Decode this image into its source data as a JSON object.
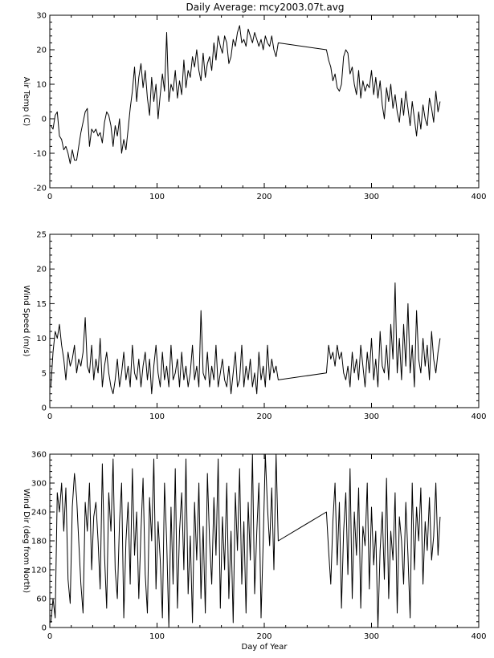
{
  "title": "Daily Average: mcy2003.07t.avg",
  "colors": {
    "line": "#000000",
    "axis": "#000000",
    "background": "#ffffff"
  },
  "chart_data": [
    {
      "id": "air-temp",
      "type": "line",
      "title": "Daily Average: mcy2003.07t.avg",
      "xlabel": "",
      "ylabel": "Air Temp (C)",
      "xlim": [
        0,
        400
      ],
      "ylim": [
        -20,
        30
      ],
      "xticks": [
        "0",
        "100",
        "200",
        "300",
        "400"
      ],
      "yticks": [
        "-20",
        "-10",
        "0",
        "10",
        "20",
        "30"
      ],
      "grid": false,
      "series": [
        {
          "x": [
            1,
            3,
            5,
            7,
            9,
            11,
            13,
            15,
            17,
            19,
            21,
            23,
            25,
            27,
            29,
            31,
            33,
            35,
            37,
            39,
            41,
            43,
            45,
            47,
            49,
            51,
            53,
            55,
            57,
            59,
            61,
            63,
            65,
            67,
            69,
            71,
            73,
            75,
            77,
            79,
            81,
            83,
            85,
            87,
            89,
            91,
            93,
            95,
            97,
            99,
            101,
            103,
            105,
            107,
            109,
            111,
            113,
            115,
            117,
            119,
            121,
            123,
            125,
            127,
            129,
            131,
            133,
            135,
            137,
            139,
            141,
            143,
            145,
            147,
            149,
            151,
            153,
            155,
            157,
            159,
            161,
            163,
            165,
            167,
            169,
            171,
            173,
            175,
            177,
            179,
            181,
            183,
            185,
            187,
            189,
            191,
            193,
            195,
            197,
            199,
            201,
            203,
            205,
            207,
            209,
            211,
            213,
            258,
            260,
            262,
            264,
            266,
            268,
            270,
            272,
            274,
            276,
            278,
            280,
            282,
            284,
            286,
            288,
            290,
            292,
            294,
            296,
            298,
            300,
            302,
            304,
            306,
            308,
            310,
            312,
            314,
            316,
            318,
            320,
            322,
            324,
            326,
            328,
            330,
            332,
            334,
            336,
            338,
            340,
            342,
            344,
            346,
            348,
            350,
            352,
            354,
            356,
            358,
            360,
            362,
            364
          ],
          "y": [
            -2,
            -3,
            1,
            2,
            -5,
            -6,
            -9,
            -8,
            -10,
            -13,
            -9,
            -12,
            -12,
            -8,
            -4,
            -1,
            2,
            3,
            -8,
            -3,
            -4,
            -3,
            -5,
            -4,
            -7,
            -1,
            2,
            1,
            -2,
            -8,
            -2,
            -5,
            0,
            -10,
            -6,
            -9,
            -3,
            3,
            8,
            15,
            5,
            12,
            16,
            9,
            14,
            6,
            1,
            12,
            5,
            10,
            0,
            7,
            13,
            8,
            25,
            5,
            10,
            8,
            14,
            6,
            11,
            7,
            17,
            9,
            14,
            12,
            18,
            15,
            20,
            14,
            11,
            19,
            12,
            16,
            18,
            14,
            22,
            17,
            24,
            21,
            19,
            24,
            22,
            16,
            18,
            23,
            21,
            25,
            27,
            22,
            23,
            21,
            26,
            24,
            22,
            25,
            23,
            21,
            23,
            20,
            24,
            22,
            21,
            24,
            20,
            18,
            22,
            20,
            17,
            15,
            11,
            13,
            9,
            8,
            10,
            18,
            20,
            19,
            13,
            15,
            10,
            7,
            14,
            6,
            11,
            8,
            10,
            9,
            14,
            7,
            12,
            6,
            11,
            4,
            0,
            9,
            5,
            10,
            3,
            7,
            2,
            -1,
            6,
            1,
            8,
            3,
            -2,
            5,
            0,
            -5,
            2,
            -3,
            4,
            0,
            -2,
            6,
            3,
            -1,
            8,
            2,
            5
          ]
        }
      ]
    },
    {
      "id": "wind-speed",
      "type": "line",
      "title": "",
      "xlabel": "",
      "ylabel": "Wind Speed (m/s)",
      "xlim": [
        0,
        400
      ],
      "ylim": [
        0,
        25
      ],
      "xticks": [
        "0",
        "100",
        "200",
        "300",
        "400"
      ],
      "yticks": [
        "0",
        "5",
        "10",
        "15",
        "20",
        "25"
      ],
      "grid": false,
      "series": [
        {
          "x": [
            1,
            3,
            5,
            7,
            9,
            11,
            13,
            15,
            17,
            19,
            21,
            23,
            25,
            27,
            29,
            31,
            33,
            35,
            37,
            39,
            41,
            43,
            45,
            47,
            49,
            51,
            53,
            55,
            57,
            59,
            61,
            63,
            65,
            67,
            69,
            71,
            73,
            75,
            77,
            79,
            81,
            83,
            85,
            87,
            89,
            91,
            93,
            95,
            97,
            99,
            101,
            103,
            105,
            107,
            109,
            111,
            113,
            115,
            117,
            119,
            121,
            123,
            125,
            127,
            129,
            131,
            133,
            135,
            137,
            139,
            141,
            143,
            145,
            147,
            149,
            151,
            153,
            155,
            157,
            159,
            161,
            163,
            165,
            167,
            169,
            171,
            173,
            175,
            177,
            179,
            181,
            183,
            185,
            187,
            189,
            191,
            193,
            195,
            197,
            199,
            201,
            203,
            205,
            207,
            209,
            211,
            213,
            258,
            260,
            262,
            264,
            266,
            268,
            270,
            272,
            274,
            276,
            278,
            280,
            282,
            284,
            286,
            288,
            290,
            292,
            294,
            296,
            298,
            300,
            302,
            304,
            306,
            308,
            310,
            312,
            314,
            316,
            318,
            320,
            322,
            324,
            326,
            328,
            330,
            332,
            334,
            336,
            338,
            340,
            342,
            344,
            346,
            348,
            350,
            352,
            354,
            356,
            358,
            360,
            362,
            364
          ],
          "y": [
            3,
            8,
            11,
            10,
            12,
            9,
            7,
            4,
            8,
            6,
            7,
            9,
            5,
            7,
            6,
            8,
            13,
            6,
            5,
            9,
            4,
            7,
            5,
            10,
            3,
            6,
            8,
            5,
            3,
            2,
            4,
            7,
            3,
            5,
            8,
            4,
            6,
            3,
            9,
            5,
            4,
            7,
            3,
            6,
            8,
            4,
            7,
            2,
            6,
            9,
            5,
            3,
            8,
            4,
            6,
            3,
            9,
            4,
            5,
            7,
            3,
            8,
            4,
            6,
            3,
            5,
            9,
            4,
            6,
            3,
            14,
            5,
            4,
            8,
            3,
            6,
            4,
            9,
            3,
            5,
            7,
            4,
            3,
            6,
            2,
            5,
            8,
            3,
            4,
            9,
            3,
            6,
            4,
            7,
            3,
            5,
            2,
            8,
            4,
            6,
            3,
            9,
            4,
            7,
            5,
            6,
            4,
            5,
            9,
            7,
            8,
            6,
            9,
            7,
            8,
            5,
            4,
            6,
            3,
            8,
            5,
            7,
            4,
            9,
            6,
            3,
            8,
            5,
            10,
            4,
            7,
            3,
            11,
            6,
            5,
            9,
            4,
            12,
            7,
            18,
            5,
            10,
            4,
            12,
            6,
            15,
            5,
            9,
            3,
            14,
            7,
            5,
            10,
            6,
            9,
            4,
            11,
            7,
            5,
            8,
            10
          ]
        }
      ]
    },
    {
      "id": "wind-dir",
      "type": "line",
      "title": "",
      "xlabel": "Day of Year",
      "ylabel": "Wind Dir (deg from North)",
      "xlim": [
        0,
        400
      ],
      "ylim": [
        0,
        360
      ],
      "xticks": [
        "0",
        "100",
        "200",
        "300",
        "400"
      ],
      "yticks": [
        "0",
        "60",
        "120",
        "180",
        "240",
        "300",
        "360"
      ],
      "grid": false,
      "series": [
        {
          "x": [
            1,
            3,
            5,
            7,
            9,
            11,
            13,
            15,
            17,
            19,
            21,
            23,
            25,
            27,
            29,
            31,
            33,
            35,
            37,
            39,
            41,
            43,
            45,
            47,
            49,
            51,
            53,
            55,
            57,
            59,
            61,
            63,
            65,
            67,
            69,
            71,
            73,
            75,
            77,
            79,
            81,
            83,
            85,
            87,
            89,
            91,
            93,
            95,
            97,
            99,
            101,
            103,
            105,
            107,
            109,
            111,
            113,
            115,
            117,
            119,
            121,
            123,
            125,
            127,
            129,
            131,
            133,
            135,
            137,
            139,
            141,
            143,
            145,
            147,
            149,
            151,
            153,
            155,
            157,
            159,
            161,
            163,
            165,
            167,
            169,
            171,
            173,
            175,
            177,
            179,
            181,
            183,
            185,
            187,
            189,
            191,
            193,
            195,
            197,
            199,
            201,
            203,
            205,
            207,
            209,
            211,
            213,
            258,
            260,
            262,
            264,
            266,
            268,
            270,
            272,
            274,
            276,
            278,
            280,
            282,
            284,
            286,
            288,
            290,
            292,
            294,
            296,
            298,
            300,
            302,
            304,
            306,
            308,
            310,
            312,
            314,
            316,
            318,
            320,
            322,
            324,
            326,
            328,
            330,
            332,
            334,
            336,
            338,
            340,
            342,
            344,
            346,
            348,
            350,
            352,
            354,
            356,
            358,
            360,
            362,
            364
          ],
          "y": [
            10,
            60,
            20,
            280,
            240,
            300,
            200,
            290,
            100,
            50,
            250,
            320,
            270,
            180,
            90,
            30,
            260,
            200,
            300,
            120,
            230,
            260,
            180,
            80,
            340,
            150,
            40,
            280,
            200,
            350,
            120,
            60,
            220,
            300,
            20,
            180,
            260,
            90,
            330,
            150,
            240,
            60,
            200,
            310,
            110,
            30,
            270,
            180,
            350,
            80,
            220,
            140,
            20,
            300,
            180,
            0,
            250,
            90,
            330,
            40,
            200,
            280,
            120,
            350,
            70,
            190,
            10,
            260,
            140,
            300,
            60,
            210,
            30,
            320,
            180,
            90,
            270,
            150,
            350,
            40,
            230,
            120,
            300,
            60,
            200,
            10,
            280,
            160,
            330,
            90,
            220,
            30,
            260,
            140,
            360,
            70,
            200,
            300,
            20,
            180,
            360,
            250,
            170,
            290,
            120,
            360,
            180,
            240,
            160,
            90,
            220,
            300,
            130,
            260,
            40,
            200,
            280,
            110,
            330,
            60,
            240,
            150,
            290,
            40,
            210,
            170,
            300,
            80,
            250,
            130,
            200,
            0,
            160,
            240,
            100,
            310,
            60,
            200,
            140,
            280,
            30,
            230,
            180,
            90,
            260,
            150,
            20,
            300,
            120,
            250,
            180,
            290,
            90,
            220,
            160,
            270,
            140,
            190,
            300,
            150,
            230
          ]
        }
      ]
    }
  ]
}
